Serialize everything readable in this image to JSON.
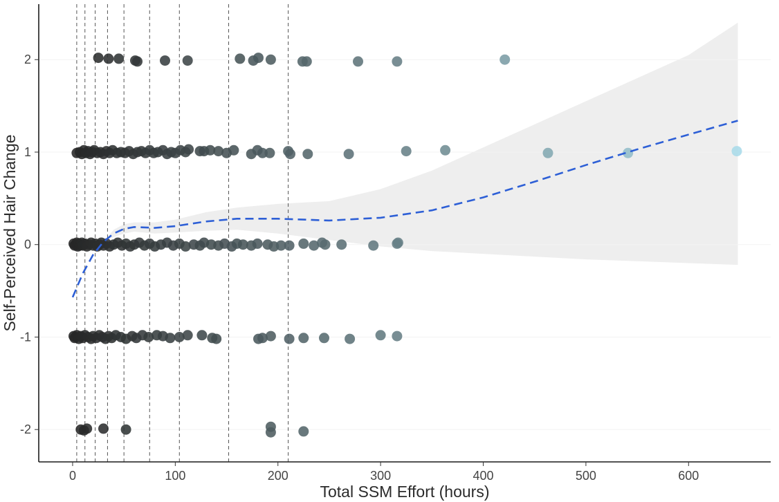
{
  "chart_data": {
    "type": "scatter",
    "title": "",
    "xlabel": "Total SSM Effort (hours)",
    "ylabel": "Self-Perceived Hair Change",
    "xlim": [
      -33,
      680
    ],
    "ylim": [
      -2.35,
      2.6
    ],
    "xticks": [
      0,
      100,
      200,
      300,
      400,
      500,
      600
    ],
    "yticks": [
      -2,
      -1,
      0,
      1,
      2
    ],
    "grid": false,
    "legend": "none",
    "vertical_reference_lines": [
      4,
      12,
      22,
      34,
      50,
      75,
      104,
      152,
      210
    ],
    "point_color_scale": {
      "low": "#262626",
      "high": "#a9dcea",
      "domain": [
        0,
        650
      ]
    },
    "points": [
      {
        "x": 25,
        "y": 2.02
      },
      {
        "x": 35,
        "y": 2.01
      },
      {
        "x": 45,
        "y": 2.01
      },
      {
        "x": 61,
        "y": 1.99
      },
      {
        "x": 63,
        "y": 1.98
      },
      {
        "x": 90,
        "y": 1.99
      },
      {
        "x": 112,
        "y": 1.99
      },
      {
        "x": 163,
        "y": 2.01
      },
      {
        "x": 176,
        "y": 1.99
      },
      {
        "x": 181,
        "y": 2.02
      },
      {
        "x": 193,
        "y": 2.0
      },
      {
        "x": 224,
        "y": 1.98
      },
      {
        "x": 228,
        "y": 1.98
      },
      {
        "x": 278,
        "y": 1.98
      },
      {
        "x": 316,
        "y": 1.98
      },
      {
        "x": 421,
        "y": 2.0
      },
      {
        "x": 4,
        "y": 0.99
      },
      {
        "x": 7,
        "y": 1.0
      },
      {
        "x": 9,
        "y": 0.98
      },
      {
        "x": 11,
        "y": 1.02
      },
      {
        "x": 13,
        "y": 0.99
      },
      {
        "x": 15,
        "y": 1.01
      },
      {
        "x": 17,
        "y": 0.98
      },
      {
        "x": 19,
        "y": 1.0
      },
      {
        "x": 21,
        "y": 1.02
      },
      {
        "x": 24,
        "y": 0.99
      },
      {
        "x": 27,
        "y": 1.0
      },
      {
        "x": 30,
        "y": 0.98
      },
      {
        "x": 33,
        "y": 1.01
      },
      {
        "x": 36,
        "y": 0.99
      },
      {
        "x": 39,
        "y": 1.02
      },
      {
        "x": 43,
        "y": 0.99
      },
      {
        "x": 47,
        "y": 1.0
      },
      {
        "x": 51,
        "y": 0.99
      },
      {
        "x": 55,
        "y": 1.01
      },
      {
        "x": 59,
        "y": 0.98
      },
      {
        "x": 63,
        "y": 1.0
      },
      {
        "x": 67,
        "y": 1.01
      },
      {
        "x": 71,
        "y": 0.99
      },
      {
        "x": 75,
        "y": 1.02
      },
      {
        "x": 79,
        "y": 0.99
      },
      {
        "x": 83,
        "y": 1.0
      },
      {
        "x": 88,
        "y": 1.02
      },
      {
        "x": 92,
        "y": 0.98
      },
      {
        "x": 96,
        "y": 1.0
      },
      {
        "x": 100,
        "y": 0.99
      },
      {
        "x": 105,
        "y": 1.02
      },
      {
        "x": 110,
        "y": 1.0
      },
      {
        "x": 113,
        "y": 1.03
      },
      {
        "x": 124,
        "y": 1.01
      },
      {
        "x": 128,
        "y": 1.01
      },
      {
        "x": 134,
        "y": 1.02
      },
      {
        "x": 142,
        "y": 1.01
      },
      {
        "x": 150,
        "y": 0.99
      },
      {
        "x": 157,
        "y": 1.02
      },
      {
        "x": 174,
        "y": 0.98
      },
      {
        "x": 180,
        "y": 1.02
      },
      {
        "x": 185,
        "y": 0.99
      },
      {
        "x": 192,
        "y": 0.99
      },
      {
        "x": 210,
        "y": 1.01
      },
      {
        "x": 212,
        "y": 0.98
      },
      {
        "x": 229,
        "y": 0.98
      },
      {
        "x": 269,
        "y": 0.98
      },
      {
        "x": 325,
        "y": 1.01
      },
      {
        "x": 363,
        "y": 1.02
      },
      {
        "x": 463,
        "y": 0.99
      },
      {
        "x": 541,
        "y": 0.99
      },
      {
        "x": 647,
        "y": 1.01
      },
      {
        "x": 1,
        "y": 0.01
      },
      {
        "x": 2,
        "y": -0.01
      },
      {
        "x": 3,
        "y": 0.0
      },
      {
        "x": 4,
        "y": 0.02
      },
      {
        "x": 5,
        "y": -0.02
      },
      {
        "x": 6,
        "y": 0.01
      },
      {
        "x": 7,
        "y": -0.01
      },
      {
        "x": 8,
        "y": 0.0
      },
      {
        "x": 9,
        "y": 0.02
      },
      {
        "x": 10,
        "y": -0.01
      },
      {
        "x": 12,
        "y": 0.01
      },
      {
        "x": 14,
        "y": -0.02
      },
      {
        "x": 16,
        "y": 0.0
      },
      {
        "x": 18,
        "y": 0.02
      },
      {
        "x": 20,
        "y": -0.01
      },
      {
        "x": 22,
        "y": 0.01
      },
      {
        "x": 24,
        "y": -0.02
      },
      {
        "x": 26,
        "y": 0.0
      },
      {
        "x": 28,
        "y": 0.02
      },
      {
        "x": 30,
        "y": -0.01
      },
      {
        "x": 33,
        "y": 0.01
      },
      {
        "x": 36,
        "y": -0.02
      },
      {
        "x": 40,
        "y": 0.0
      },
      {
        "x": 44,
        "y": 0.02
      },
      {
        "x": 48,
        "y": -0.01
      },
      {
        "x": 52,
        "y": 0.01
      },
      {
        "x": 56,
        "y": -0.02
      },
      {
        "x": 60,
        "y": 0.0
      },
      {
        "x": 65,
        "y": 0.02
      },
      {
        "x": 70,
        "y": -0.01
      },
      {
        "x": 75,
        "y": 0.01
      },
      {
        "x": 80,
        "y": -0.02
      },
      {
        "x": 86,
        "y": 0.0
      },
      {
        "x": 92,
        "y": 0.02
      },
      {
        "x": 98,
        "y": -0.01
      },
      {
        "x": 104,
        "y": 0.01
      },
      {
        "x": 110,
        "y": -0.02
      },
      {
        "x": 118,
        "y": 0.0
      },
      {
        "x": 124,
        "y": -0.01
      },
      {
        "x": 128,
        "y": 0.02
      },
      {
        "x": 135,
        "y": 0.0
      },
      {
        "x": 142,
        "y": -0.01
      },
      {
        "x": 148,
        "y": 0.01
      },
      {
        "x": 155,
        "y": -0.02
      },
      {
        "x": 160,
        "y": 0.01
      },
      {
        "x": 166,
        "y": 0.0
      },
      {
        "x": 174,
        "y": -0.01
      },
      {
        "x": 180,
        "y": 0.01
      },
      {
        "x": 190,
        "y": 0.0
      },
      {
        "x": 196,
        "y": -0.02
      },
      {
        "x": 203,
        "y": -0.01
      },
      {
        "x": 211,
        "y": -0.01
      },
      {
        "x": 225,
        "y": 0.01
      },
      {
        "x": 235,
        "y": -0.01
      },
      {
        "x": 243,
        "y": 0.02
      },
      {
        "x": 246,
        "y": 0.0
      },
      {
        "x": 262,
        "y": 0.0
      },
      {
        "x": 293,
        "y": -0.01
      },
      {
        "x": 316,
        "y": 0.01
      },
      {
        "x": 317,
        "y": 0.02
      },
      {
        "x": 1,
        "y": -0.99
      },
      {
        "x": 2,
        "y": -1.01
      },
      {
        "x": 3,
        "y": -1.0
      },
      {
        "x": 4,
        "y": -0.98
      },
      {
        "x": 6,
        "y": -1.02
      },
      {
        "x": 8,
        "y": -0.99
      },
      {
        "x": 10,
        "y": -1.01
      },
      {
        "x": 12,
        "y": -0.98
      },
      {
        "x": 15,
        "y": -1.0
      },
      {
        "x": 18,
        "y": -1.02
      },
      {
        "x": 20,
        "y": -0.99
      },
      {
        "x": 23,
        "y": -1.01
      },
      {
        "x": 26,
        "y": -0.98
      },
      {
        "x": 29,
        "y": -1.0
      },
      {
        "x": 32,
        "y": -1.02
      },
      {
        "x": 35,
        "y": -0.99
      },
      {
        "x": 38,
        "y": -1.01
      },
      {
        "x": 42,
        "y": -0.98
      },
      {
        "x": 47,
        "y": -1.0
      },
      {
        "x": 52,
        "y": -1.02
      },
      {
        "x": 58,
        "y": -0.99
      },
      {
        "x": 62,
        "y": -1.01
      },
      {
        "x": 68,
        "y": -0.98
      },
      {
        "x": 74,
        "y": -1.0
      },
      {
        "x": 82,
        "y": -0.98
      },
      {
        "x": 88,
        "y": -0.99
      },
      {
        "x": 95,
        "y": -1.01
      },
      {
        "x": 104,
        "y": -1.0
      },
      {
        "x": 112,
        "y": -0.98
      },
      {
        "x": 126,
        "y": -0.98
      },
      {
        "x": 136,
        "y": -1.01
      },
      {
        "x": 140,
        "y": -1.02
      },
      {
        "x": 181,
        "y": -1.02
      },
      {
        "x": 185,
        "y": -1.01
      },
      {
        "x": 193,
        "y": -0.99
      },
      {
        "x": 211,
        "y": -1.02
      },
      {
        "x": 225,
        "y": -1.01
      },
      {
        "x": 245,
        "y": -1.01
      },
      {
        "x": 270,
        "y": -1.02
      },
      {
        "x": 300,
        "y": -0.98
      },
      {
        "x": 316,
        "y": -0.99
      },
      {
        "x": 8,
        "y": -2.0
      },
      {
        "x": 11,
        "y": -2.01
      },
      {
        "x": 14,
        "y": -1.99
      },
      {
        "x": 30,
        "y": -1.99
      },
      {
        "x": 52,
        "y": -2.0
      },
      {
        "x": 193,
        "y": -1.97
      },
      {
        "x": 193,
        "y": -2.03
      },
      {
        "x": 225,
        "y": -2.02
      }
    ],
    "smooth": {
      "x": [
        0,
        10,
        20,
        30,
        40,
        50,
        60,
        80,
        100,
        130,
        160,
        200,
        250,
        300,
        350,
        400,
        450,
        500,
        550,
        600,
        648
      ],
      "y": [
        -0.57,
        -0.31,
        -0.11,
        0.03,
        0.12,
        0.17,
        0.19,
        0.18,
        0.2,
        0.25,
        0.28,
        0.28,
        0.26,
        0.29,
        0.37,
        0.51,
        0.68,
        0.86,
        1.03,
        1.19,
        1.34
      ],
      "lower": [
        -0.57,
        -0.31,
        -0.11,
        0.03,
        0.08,
        0.12,
        0.14,
        0.12,
        0.13,
        0.15,
        0.16,
        0.12,
        0.05,
        -0.02,
        -0.07,
        -0.1,
        -0.13,
        -0.16,
        -0.18,
        -0.2,
        -0.22
      ],
      "upper": [
        -0.57,
        -0.31,
        -0.11,
        0.03,
        0.16,
        0.22,
        0.24,
        0.24,
        0.27,
        0.35,
        0.4,
        0.44,
        0.47,
        0.6,
        0.8,
        1.05,
        1.3,
        1.55,
        1.8,
        2.05,
        2.4
      ],
      "line_color": "#2d5fd6",
      "band_color": "#eeeeee"
    }
  }
}
